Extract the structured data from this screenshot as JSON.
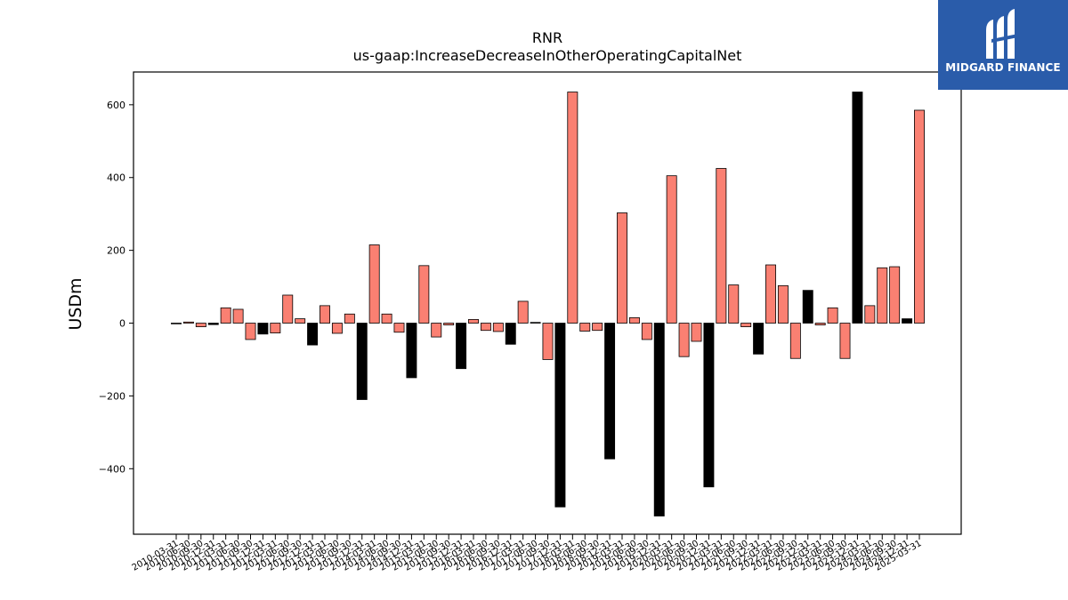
{
  "brand": {
    "name": "MIDGARD FINANCE",
    "bg_color": "#2a5caa",
    "icon": "midgard-logo-icon"
  },
  "chart_data": {
    "type": "bar",
    "title": "RNR",
    "subtitle": "us-gaap:IncreaseDecreaseInOtherOperatingCapitalNet",
    "ylabel": "USDm",
    "xlabel": "",
    "ylim": [
      -580,
      690
    ],
    "yticks": [
      -400,
      -200,
      0,
      200,
      400,
      600
    ],
    "grid": false,
    "colors": {
      "quarter": "#fa8072",
      "annual": "#000000",
      "edge": "#000000"
    },
    "categories": [
      "2010-03-31",
      "2010-06-30",
      "2010-09-30",
      "2010-12-31",
      "2011-03-31",
      "2011-06-30",
      "2011-09-30",
      "2011-12-31",
      "2012-03-31",
      "2012-06-30",
      "2012-09-30",
      "2012-12-31",
      "2013-03-31",
      "2013-06-30",
      "2013-09-30",
      "2013-12-31",
      "2014-03-31",
      "2014-06-30",
      "2014-09-30",
      "2014-12-31",
      "2015-03-31",
      "2015-06-30",
      "2015-09-30",
      "2015-12-31",
      "2016-03-31",
      "2016-06-30",
      "2016-09-30",
      "2016-12-31",
      "2017-03-31",
      "2017-06-30",
      "2017-09-30",
      "2017-12-31",
      "2018-03-31",
      "2018-06-30",
      "2018-09-30",
      "2018-12-31",
      "2019-03-31",
      "2019-06-30",
      "2019-09-30",
      "2019-12-31",
      "2020-03-31",
      "2020-06-30",
      "2020-09-30",
      "2020-12-31",
      "2021-03-31",
      "2021-06-30",
      "2021-09-30",
      "2021-12-31",
      "2022-03-31",
      "2022-06-30",
      "2022-09-30",
      "2022-12-31",
      "2023-03-31",
      "2023-06-30",
      "2023-09-30",
      "2023-12-31",
      "2024-03-31",
      "2024-06-30",
      "2024-09-30",
      "2024-12-31",
      "2025-03-31"
    ],
    "values": [
      -2,
      3,
      -10,
      -4,
      42,
      38,
      -45,
      -30,
      -27,
      77,
      12,
      -60,
      48,
      -28,
      25,
      -210,
      215,
      25,
      -25,
      -150,
      158,
      -38,
      -5,
      -125,
      10,
      -20,
      -23,
      -58,
      60,
      2,
      -100,
      -505,
      635,
      -22,
      -20,
      -373,
      303,
      15,
      -45,
      -530,
      405,
      -92,
      -50,
      -450,
      425,
      105,
      -10,
      -85,
      160,
      103,
      -97,
      90,
      -5,
      42,
      -97,
      635,
      48,
      152,
      155,
      12,
      585
    ],
    "annual_flags": [
      0,
      0,
      0,
      1,
      0,
      0,
      0,
      1,
      0,
      0,
      0,
      1,
      0,
      0,
      0,
      1,
      0,
      0,
      0,
      1,
      0,
      0,
      0,
      1,
      0,
      0,
      0,
      1,
      0,
      0,
      0,
      1,
      0,
      0,
      0,
      1,
      0,
      0,
      0,
      1,
      0,
      0,
      0,
      1,
      0,
      0,
      0,
      1,
      0,
      0,
      0,
      1,
      0,
      0,
      0,
      1,
      0,
      0,
      0,
      1,
      0
    ],
    "visible_tick_labels": [
      "2010-03-31",
      "2010-06-30",
      "2010-09-30",
      "2010-12-31",
      "2011-03-31",
      "2011-06-30",
      "2011-09-30",
      "2011-12-31",
      "2012-03-31",
      "2012-06-30",
      "2012-09-30",
      "2012-12-31",
      "2013-03-31",
      "2013-06-30",
      "2013-09-30",
      "2013-12-31",
      "2014-03-31",
      "2014-06-30",
      "2014-09-30",
      "2014-12-31",
      "2015-03-31",
      "2015-06-30",
      "2015-09-30",
      "2015-12-31",
      "2016-03-31",
      "2016-06-30",
      "2016-09-30",
      "2016-12-31",
      "2017-03-31",
      "2017-06-30",
      "2017-09-30",
      "2017-12-31",
      "2018-03-31",
      "2018-06-30",
      "2018-09-30",
      "2018-12-31",
      "2019-03-31",
      "2019-06-30",
      "2019-09-30",
      "2019-12-31",
      "2020-03-31",
      "2020-06-30",
      "2020-09-30",
      "2020-12-31",
      "2021-03-31",
      "2021-06-30",
      "2021-09-30",
      "2021-12-31",
      "2022-03-31",
      "2022-06-30",
      "2022-09-30",
      "2022-12-31",
      "2023-03-31",
      "2023-06-30",
      "2023-09-30",
      "2023-12-31",
      "2024-03-31",
      "2024-06-30",
      "2024-09-30",
      "2024-12-31",
      "2025-03-31"
    ]
  }
}
